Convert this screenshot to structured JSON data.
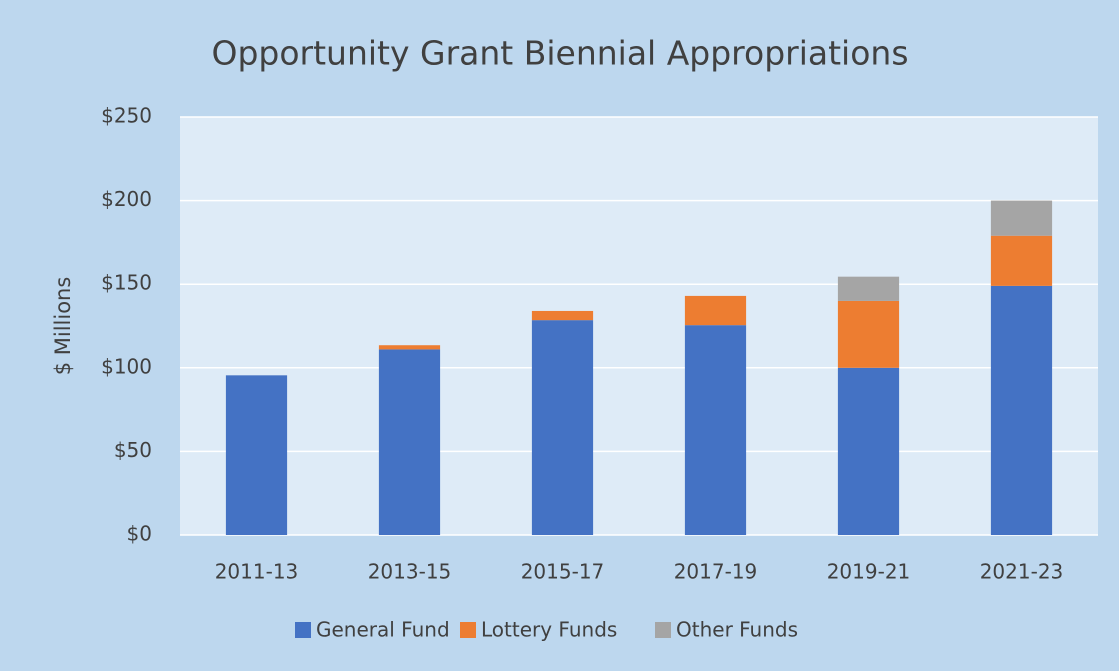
{
  "chart_data": {
    "type": "stacked_bar",
    "title": "Opportunity Grant Biennial Appropriations",
    "y_label": "$ Millions",
    "categories": [
      "2011-13",
      "2013-15",
      "2015-17",
      "2017-19",
      "2019-21",
      "2021-23"
    ],
    "series": [
      {
        "name": "General Fund",
        "color": "#4472c4",
        "values": [
          95.5,
          111,
          128.5,
          125.5,
          100,
          149
        ]
      },
      {
        "name": "Lottery Funds",
        "color": "#ed7d31",
        "values": [
          0,
          2.5,
          5.5,
          17.5,
          40,
          30
        ]
      },
      {
        "name": "Other Funds",
        "color": "#a5a5a5",
        "values": [
          0,
          0,
          0,
          0,
          14.5,
          21
        ]
      }
    ],
    "ylim": [
      0,
      250
    ],
    "yticks": [
      {
        "value": 0,
        "label": "$0"
      },
      {
        "value": 50,
        "label": "$50"
      },
      {
        "value": 100,
        "label": "$100"
      },
      {
        "value": 150,
        "label": "$150"
      },
      {
        "value": 200,
        "label": "$200"
      },
      {
        "value": 250,
        "label": "$250"
      }
    ],
    "grid": true,
    "legend": "bottom"
  }
}
